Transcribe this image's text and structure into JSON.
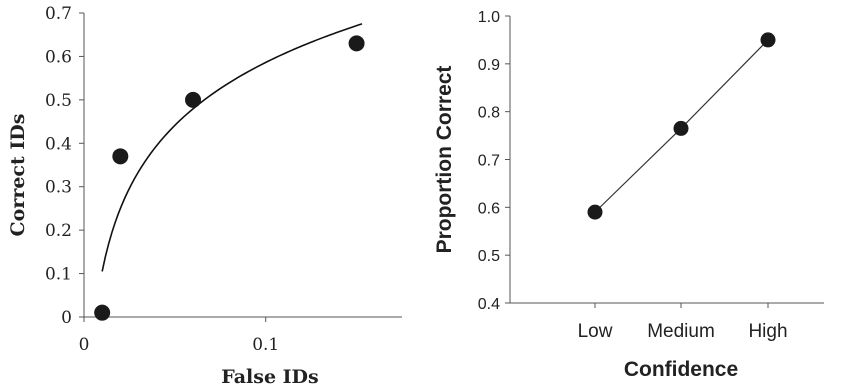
{
  "chart_data": [
    {
      "type": "scatter",
      "xlabel": "False IDs",
      "ylabel": "Correct IDs",
      "xlim": [
        0,
        0.175
      ],
      "ylim": [
        0,
        0.7
      ],
      "xticks": [
        "0",
        "0.1"
      ],
      "yticks": [
        "0",
        "0.1",
        "0.2",
        "0.3",
        "0.4",
        "0.5",
        "0.6",
        "0.7"
      ],
      "points": [
        {
          "x": 0.01,
          "y": 0.01
        },
        {
          "x": 0.02,
          "y": 0.37
        },
        {
          "x": 0.06,
          "y": 0.5
        },
        {
          "x": 0.15,
          "y": 0.63
        }
      ],
      "fit": {
        "type": "logarithmic",
        "x_range": [
          0.01,
          0.153
        ],
        "values": [
          {
            "x": 0.01,
            "y": 0.105
          },
          {
            "x": 0.153,
            "y": 0.675
          }
        ]
      },
      "grid": false
    },
    {
      "type": "line",
      "xlabel": "Confidence",
      "ylabel": "Proportion Correct",
      "categories": [
        "Low",
        "Medium",
        "High"
      ],
      "values": [
        0.59,
        0.765,
        0.95
      ],
      "ylim": [
        0.4,
        1.0
      ],
      "yticks": [
        "0.4",
        "0.5",
        "0.6",
        "0.7",
        "0.8",
        "0.9",
        "1.0"
      ],
      "grid": false
    }
  ]
}
